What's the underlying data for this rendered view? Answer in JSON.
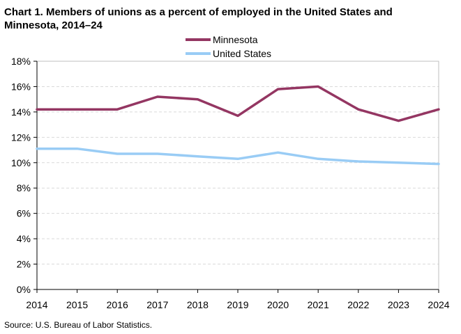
{
  "chart_data": {
    "type": "line",
    "title_line1": "Chart 1. Members of unions as a percent of employed  in the United States and",
    "title_line2": "Minnesota,  2014–24",
    "x": [
      "2014",
      "2015",
      "2016",
      "2017",
      "2018",
      "2019",
      "2020",
      "2021",
      "2022",
      "2023",
      "2024"
    ],
    "y_ticks": [
      "0%",
      "2%",
      "4%",
      "6%",
      "8%",
      "10%",
      "12%",
      "14%",
      "16%",
      "18%"
    ],
    "ylim": [
      0,
      18
    ],
    "ystep": 2,
    "series": [
      {
        "name": "Minnesota",
        "color": "#943662",
        "values": [
          14.2,
          14.2,
          14.2,
          15.2,
          15.0,
          13.7,
          15.8,
          16.0,
          14.2,
          13.3,
          14.2
        ]
      },
      {
        "name": "United States",
        "color": "#99ccf5",
        "values": [
          11.1,
          11.1,
          10.7,
          10.7,
          10.5,
          10.3,
          10.8,
          10.3,
          10.1,
          10.0,
          9.9
        ]
      }
    ],
    "grid": true,
    "legend_position": "top-center",
    "source": "Source:  U.S. Bureau  of Labor Statistics."
  }
}
